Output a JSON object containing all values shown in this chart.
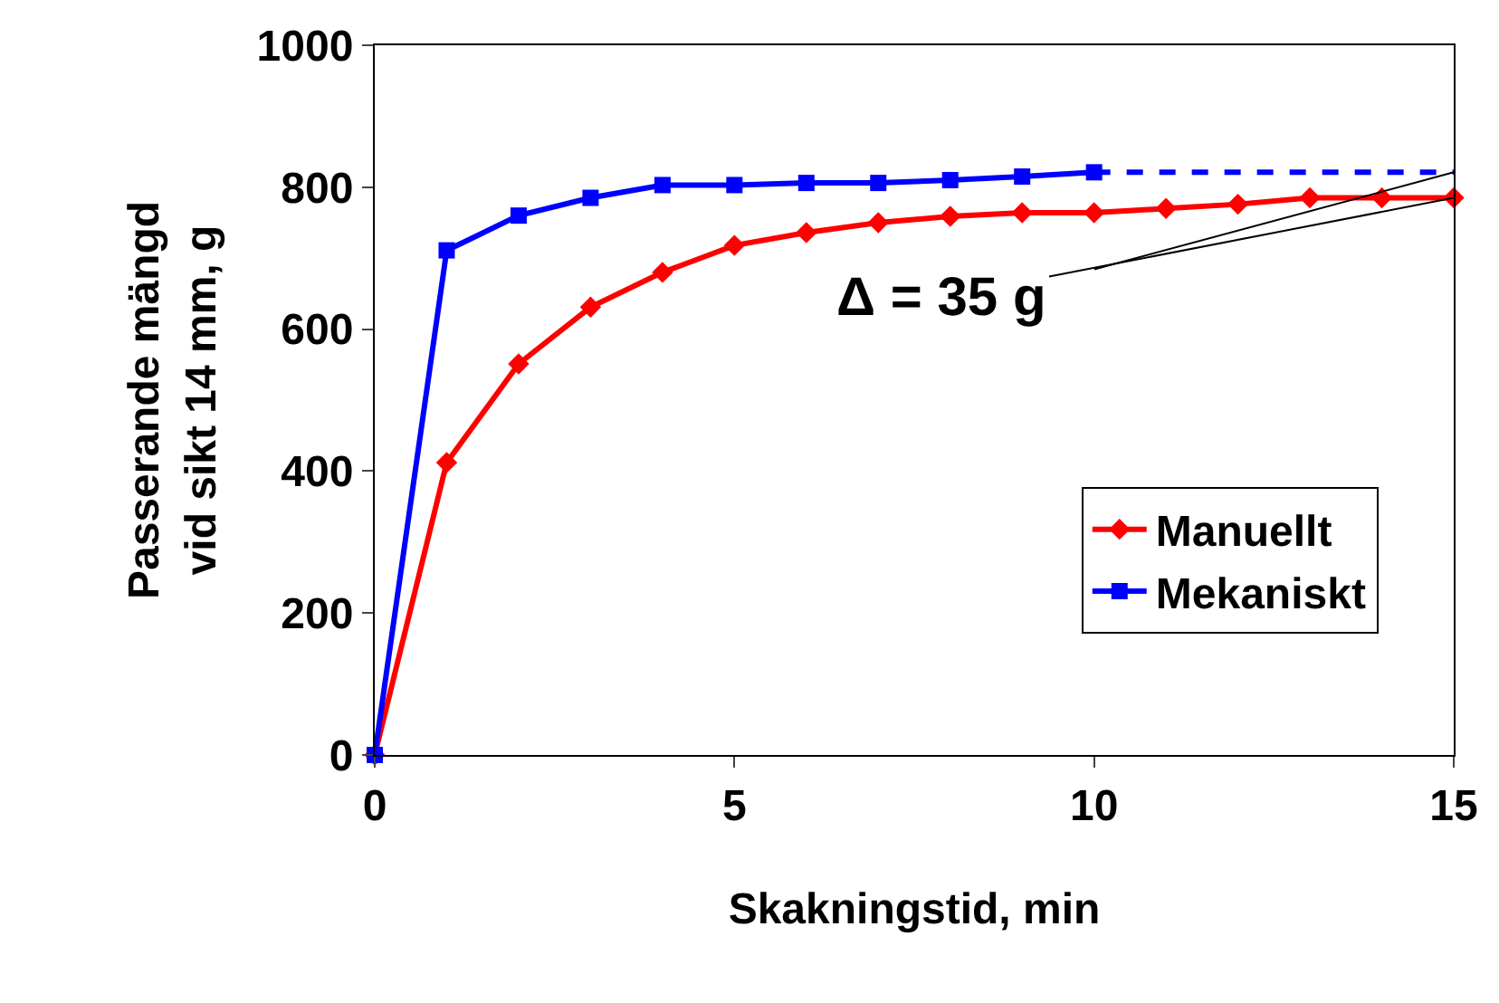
{
  "chart_data": {
    "type": "line",
    "xlabel": "Skakningstid, min",
    "ylabel": "Passerande mängd\nvid sikt 14 mm, g",
    "x": [
      0,
      1,
      2,
      3,
      4,
      5,
      6,
      7,
      8,
      9,
      10,
      11,
      12,
      13,
      14,
      15
    ],
    "series": [
      {
        "name": "Manuellt",
        "color": "#ff0000",
        "marker": "diamond",
        "values": [
          0,
          412,
          551,
          631,
          680,
          718,
          736,
          750,
          759,
          764,
          764,
          770,
          776,
          785,
          785,
          785
        ]
      },
      {
        "name": "Mekaniskt",
        "color": "#0000ff",
        "marker": "square",
        "values": [
          0,
          711,
          760,
          785,
          803,
          803,
          806,
          806,
          810,
          815,
          821,
          null,
          null,
          null,
          null,
          null
        ]
      },
      {
        "color": "#0000ff",
        "marker": "none",
        "line_style": "dashed",
        "x": [
          10,
          15
        ],
        "values": [
          821,
          821
        ]
      }
    ],
    "annotations": [
      {
        "text": "Δ = 35 g",
        "x": 15,
        "y": 785
      }
    ],
    "xlim": [
      0,
      15
    ],
    "xticks": [
      0,
      5,
      10,
      15
    ],
    "ylim": [
      0,
      1000
    ],
    "yticks": [
      0,
      200,
      400,
      600,
      800,
      1000
    ],
    "legend": "bottom right"
  }
}
